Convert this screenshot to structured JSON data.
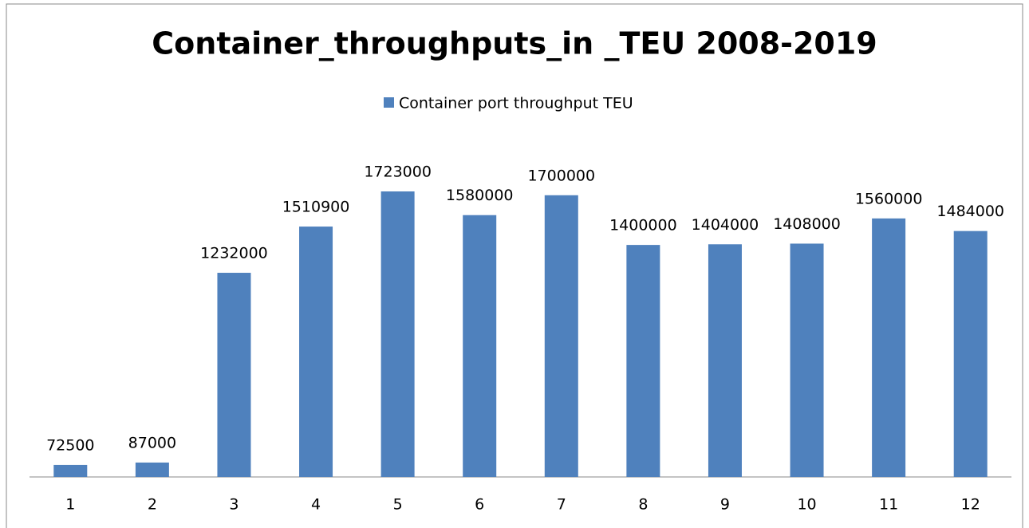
{
  "chart_data": {
    "type": "bar",
    "title": "Container_throughputs_in _TEU 2008-2019",
    "categories": [
      "1",
      "2",
      "3",
      "4",
      "5",
      "6",
      "7",
      "8",
      "9",
      "10",
      "11",
      "12"
    ],
    "series": [
      {
        "name": "Container port throughput TEU",
        "color": "#4f81bd",
        "values": [
          72500,
          87000,
          1232000,
          1510900,
          1723000,
          1580000,
          1700000,
          1400000,
          1404000,
          1408000,
          1560000,
          1484000
        ]
      }
    ],
    "legend": "top"
  }
}
